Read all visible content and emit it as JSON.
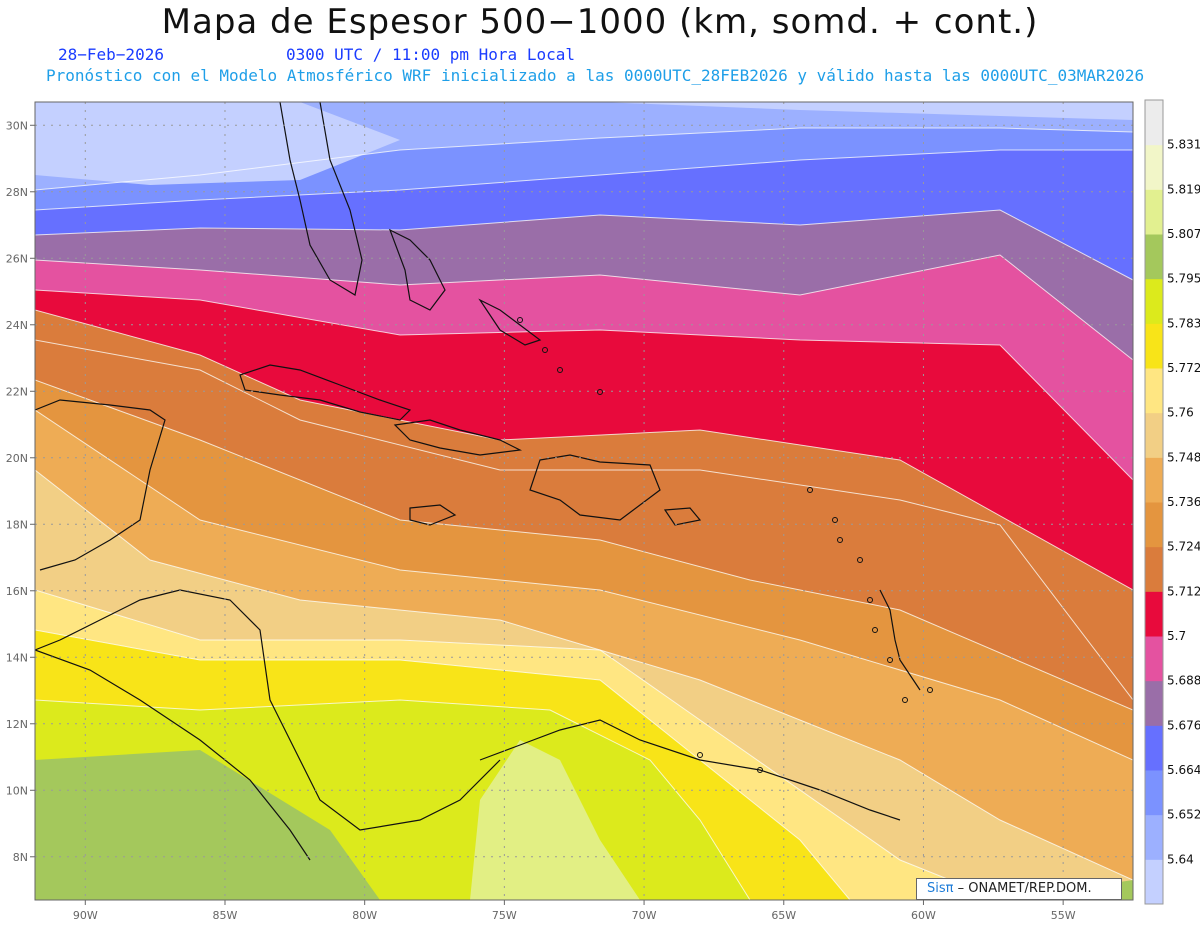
{
  "header": {
    "title": "Mapa de Espesor 500−1000 (km, somd. + cont.)",
    "date": "28−Feb−2026",
    "time": "0300 UTC / 11:00 pm Hora Local",
    "description": "Pronóstico con el Modelo Atmosférico WRF inicializado a las 0000UTC_28FEB2026 y válido hasta las  0000UTC_03MAR2026"
  },
  "map": {
    "lon_ticks": [
      "90W",
      "85W",
      "80W",
      "75W",
      "70W",
      "65W",
      "60W",
      "55W"
    ],
    "lat_ticks": [
      "30N",
      "28N",
      "26N",
      "24N",
      "22N",
      "20N",
      "18N",
      "16N",
      "14N",
      "12N",
      "10N",
      "8N"
    ],
    "lon_range": [
      -91.8,
      -52.5
    ],
    "lat_range": [
      6.7,
      30.7
    ],
    "grid": true
  },
  "colorbar": {
    "levels": [
      "5.64",
      "5.652",
      "5.664",
      "5.676",
      "5.688",
      "5.7",
      "5.712",
      "5.724",
      "5.736",
      "5.748",
      "5.76",
      "5.772",
      "5.783",
      "5.795",
      "5.807",
      "5.819",
      "5.831"
    ],
    "colors": [
      "#c4d0ff",
      "#9cb0ff",
      "#7b92ff",
      "#6670ff",
      "#9a6ea8",
      "#e452a0",
      "#e80a3c",
      "#da7c3c",
      "#e4953f",
      "#eeac55",
      "#f2cf85",
      "#ffe682",
      "#f8e418",
      "#dcea1c",
      "#a4c85c",
      "#e2f090",
      "#f2f6c8",
      "#ececec"
    ]
  },
  "credit": {
    "brand": "Sisπ",
    "org": "– ONAMET/REP.DOM."
  }
}
